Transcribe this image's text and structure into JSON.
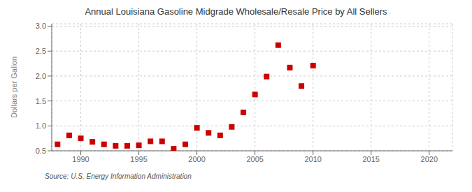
{
  "chart_data": {
    "type": "scatter",
    "title": "Annual Louisiana Gasoline Midgrade Wholesale/Resale Price by All Sellers",
    "y_label": "Dollars per Gallon",
    "source": "Source: U.S. Energy Information Administration",
    "x": [
      1988,
      1989,
      1990,
      1991,
      1992,
      1993,
      1994,
      1995,
      1996,
      1997,
      1998,
      1999,
      2000,
      2001,
      2002,
      2003,
      2004,
      2005,
      2006,
      2007,
      2008,
      2009,
      2010
    ],
    "values": [
      0.63,
      0.81,
      0.75,
      0.68,
      0.63,
      0.6,
      0.6,
      0.61,
      0.69,
      0.69,
      0.54,
      0.63,
      0.96,
      0.86,
      0.81,
      0.98,
      1.27,
      1.63,
      1.99,
      2.62,
      2.17,
      1.8,
      2.21
    ],
    "color": "#cc0000",
    "marker": "square",
    "xlim": [
      1987.5,
      2022
    ],
    "ylim": [
      0.5,
      3.05
    ],
    "xticks": [
      1990,
      1995,
      2000,
      2005,
      2010,
      2015,
      2020
    ],
    "yticks": [
      0.5,
      {
        "value": 1,
        "label": "1.0"
      },
      1.5,
      {
        "value": 2,
        "label": "2.0"
      },
      2.5,
      {
        "value": 3,
        "label": "3.0"
      }
    ],
    "grid": true
  }
}
